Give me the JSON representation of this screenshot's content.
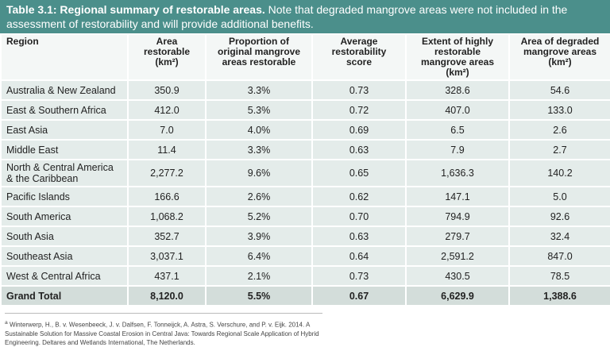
{
  "table": {
    "caption": {
      "title": "Table 3.1: Regional summary of restorable areas.",
      "text": "Note that degraded mangrove areas were not included in the assessment of restorability and will provide additional benefits."
    },
    "columns": [
      "Region",
      "Area restorable (km²)",
      "Proportion of original mangrove areas restorable",
      "Average restorability score",
      "Extent of highly restorable mangrove areas (km²)",
      "Area of degraded mangrove areas (km²)"
    ],
    "rows": [
      [
        "Australia & New Zealand",
        "350.9",
        "3.3%",
        "0.73",
        "328.6",
        "54.6"
      ],
      [
        "East & Southern Africa",
        "412.0",
        "5.3%",
        "0.72",
        "407.0",
        "133.0"
      ],
      [
        "East Asia",
        "7.0",
        "4.0%",
        "0.69",
        "6.5",
        "2.6"
      ],
      [
        "Middle East",
        "11.4",
        "3.3%",
        "0.63",
        "7.9",
        "2.7"
      ],
      [
        "North & Central America & the Caribbean",
        "2,277.2",
        "9.6%",
        "0.65",
        "1,636.3",
        "140.2"
      ],
      [
        "Pacific Islands",
        "166.6",
        "2.6%",
        "0.62",
        "147.1",
        "5.0"
      ],
      [
        "South America",
        "1,068.2",
        "5.2%",
        "0.70",
        "794.9",
        "92.6"
      ],
      [
        "South Asia",
        "352.7",
        "3.9%",
        "0.63",
        "279.7",
        "32.4"
      ],
      [
        "Southeast Asia",
        "3,037.1",
        "6.4%",
        "0.64",
        "2,591.2",
        "847.0"
      ],
      [
        "West & Central Africa",
        "437.1",
        "2.1%",
        "0.73",
        "430.5",
        "78.5"
      ]
    ],
    "total": [
      "Grand Total",
      "8,120.0",
      "5.5%",
      "0.67",
      "6,629.9",
      "1,388.6"
    ]
  },
  "footnote": {
    "marker": "a",
    "text": "Winterwerp, H., B. v. Wesenbeeck, J. v. Dalfsen, F. Tonneijck, A. Astra, S. Verschure, and P. v. Eijk. 2014. A Sustainable Solution for Massive Coastal Erosion in Central Java: Towards Regional Scale Application of Hybrid Engineering. Deltares and Wetlands International, The Netherlands."
  }
}
